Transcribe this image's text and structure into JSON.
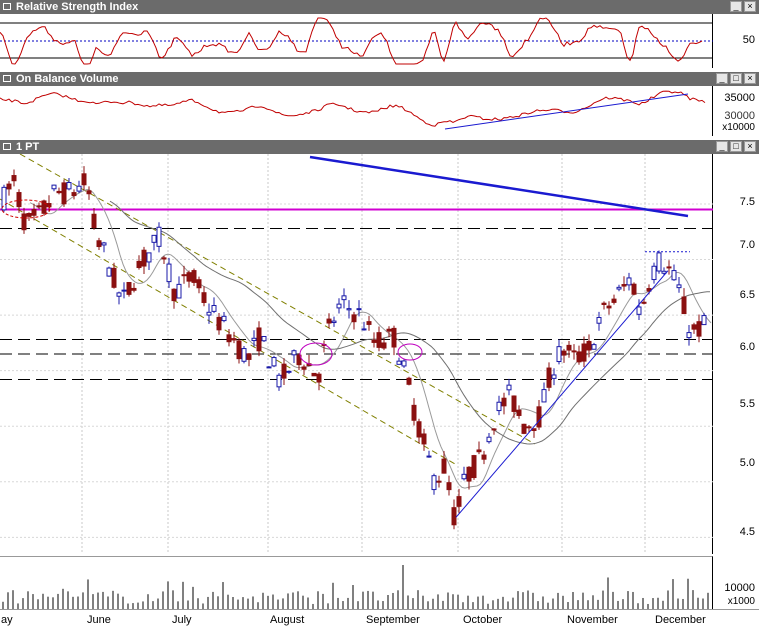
{
  "panels": {
    "rsi": {
      "title": "Relative Strength Index",
      "ylabels": [
        "50"
      ]
    },
    "obv": {
      "title": "On Balance Volume",
      "ylabels": [
        "35000",
        "30000"
      ],
      "scale_label": "x10000"
    },
    "price": {
      "title": "1 PT",
      "ylabels": [
        "7.5",
        "7.0",
        "6.5",
        "6.0",
        "5.5",
        "5.0",
        "4.5"
      ]
    },
    "volume": {
      "ylabels": [
        "10000"
      ],
      "scale_label": "x1000"
    }
  },
  "window_buttons": {
    "minimize": "_",
    "maximize": "□",
    "close": "×"
  },
  "months": [
    "ay",
    "June",
    "July",
    "August",
    "September",
    "October",
    "November",
    "December"
  ],
  "colors": {
    "up": "#1a1aa8",
    "down": "#8b1010",
    "rsi_line": "#c00000",
    "trend": "#1a1ad0",
    "resistance": "#d000d0",
    "channel": "#808000"
  },
  "chart_data": {
    "type": "candlestick",
    "price_ylim": [
      4.35,
      7.95
    ],
    "price_levels": [
      7.45,
      7.28,
      6.28,
      6.15,
      5.92
    ],
    "price_path": [
      [
        0,
        7.5
      ],
      [
        14,
        7.7
      ],
      [
        26,
        7.3
      ],
      [
        40,
        7.4
      ],
      [
        55,
        7.6
      ],
      [
        70,
        7.6
      ],
      [
        87,
        7.7
      ],
      [
        96,
        7.2
      ],
      [
        105,
        7.05
      ],
      [
        122,
        6.6
      ],
      [
        140,
        6.95
      ],
      [
        160,
        7.2
      ],
      [
        175,
        6.7
      ],
      [
        192,
        6.85
      ],
      [
        210,
        6.55
      ],
      [
        232,
        6.3
      ],
      [
        248,
        6.1
      ],
      [
        260,
        6.3
      ],
      [
        280,
        5.9
      ],
      [
        300,
        6.15
      ],
      [
        318,
        5.95
      ],
      [
        330,
        6.4
      ],
      [
        342,
        6.6
      ],
      [
        360,
        6.5
      ],
      [
        375,
        6.25
      ],
      [
        395,
        6.3
      ],
      [
        410,
        5.8
      ],
      [
        420,
        5.45
      ],
      [
        435,
        5.0
      ],
      [
        445,
        5.15
      ],
      [
        455,
        4.65
      ],
      [
        466,
        5.05
      ],
      [
        480,
        5.2
      ],
      [
        495,
        5.6
      ],
      [
        510,
        5.78
      ],
      [
        525,
        5.5
      ],
      [
        540,
        5.6
      ],
      [
        550,
        5.95
      ],
      [
        562,
        6.2
      ],
      [
        575,
        6.1
      ],
      [
        590,
        6.2
      ],
      [
        605,
        6.55
      ],
      [
        620,
        6.7
      ],
      [
        632,
        6.85
      ],
      [
        640,
        6.5
      ],
      [
        650,
        6.85
      ],
      [
        660,
        7.0
      ],
      [
        670,
        6.9
      ],
      [
        680,
        6.7
      ],
      [
        690,
        6.35
      ],
      [
        705,
        6.4
      ]
    ],
    "trendlines": [
      {
        "name": "",
        "from": [
          0.29,
          7.88
        ],
        "to": [
          0.68,
          7.32
        ]
      },
      {
        "name": "",
        "from": [
          456,
          4.7
        ],
        "to": [
          665,
          6.85
        ]
      }
    ],
    "volume_ylim": [
      0,
      18000
    ],
    "volume_label": "10000",
    "rsi_reference": 50,
    "obv_labels": [
      "35000",
      "30000"
    ]
  }
}
